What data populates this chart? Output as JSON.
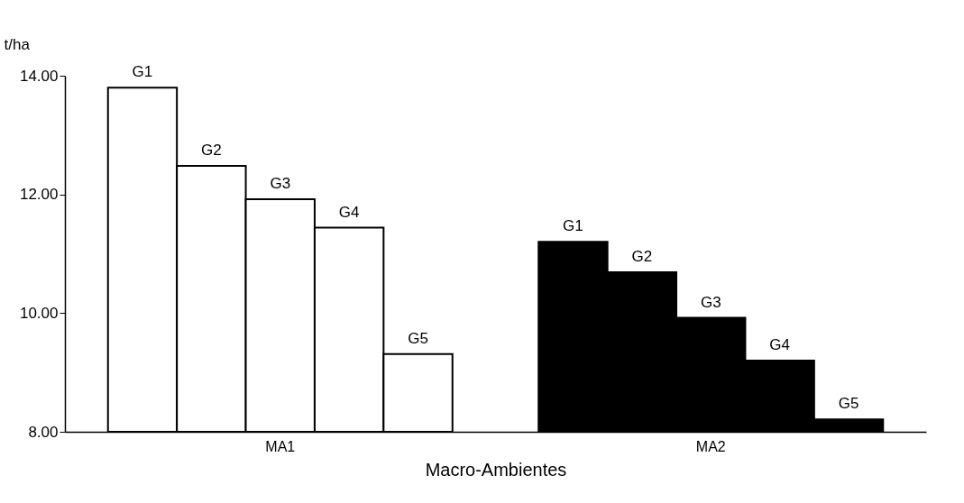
{
  "chart_data": {
    "type": "bar",
    "xlabel": "Macro-Ambientes",
    "ylabel": "t/ha",
    "categories": [
      "MA1",
      "MA2"
    ],
    "series": [
      {
        "name": "G1",
        "colors": [
          "#ffffff",
          "#000000"
        ],
        "values": [
          13.8,
          11.2
        ]
      },
      {
        "name": "G2",
        "colors": [
          "#ffffff",
          "#000000"
        ],
        "values": [
          12.48,
          10.69
        ]
      },
      {
        "name": "G3",
        "colors": [
          "#ffffff",
          "#000000"
        ],
        "values": [
          11.92,
          9.92
        ]
      },
      {
        "name": "G4",
        "colors": [
          "#ffffff",
          "#000000"
        ],
        "values": [
          11.44,
          9.2
        ]
      },
      {
        "name": "G5",
        "colors": [
          "#ffffff",
          "#000000"
        ],
        "values": [
          9.31,
          8.21
        ]
      }
    ],
    "ylim": [
      8,
      14
    ],
    "yticks": [
      {
        "value": 8,
        "label": "8.00"
      },
      {
        "value": 10,
        "label": "10.00"
      },
      {
        "value": 12,
        "label": "12.00"
      },
      {
        "value": 14,
        "label": "14.00"
      }
    ],
    "grid": false
  }
}
